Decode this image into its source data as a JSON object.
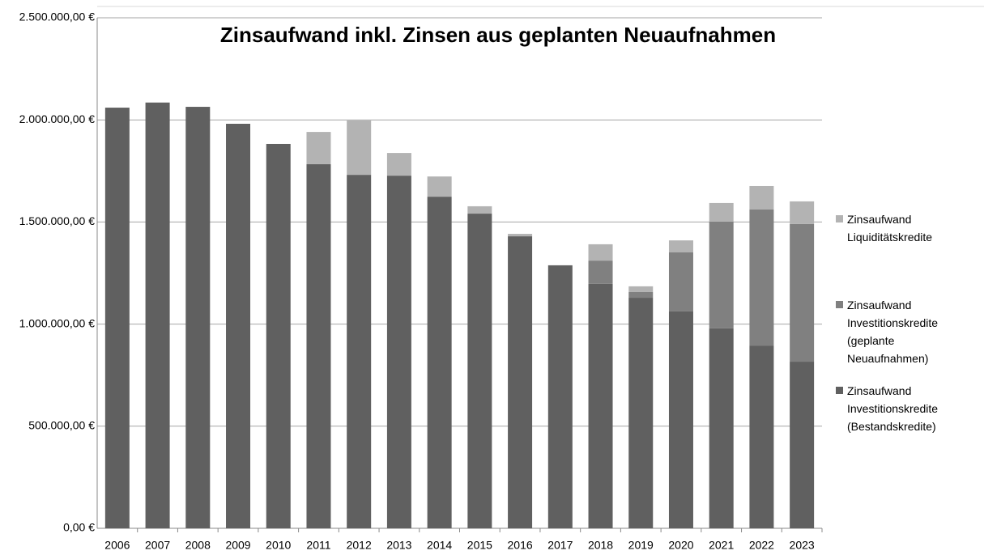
{
  "chart_data": {
    "type": "stacked_bar",
    "title": "Zinsaufwand inkl. Zinsen aus geplanten Neuaufnahmen",
    "categories": [
      "2006",
      "2007",
      "2008",
      "2009",
      "2010",
      "2011",
      "2012",
      "2013",
      "2014",
      "2015",
      "2016",
      "2017",
      "2018",
      "2019",
      "2020",
      "2021",
      "2022",
      "2023"
    ],
    "series": [
      {
        "name": "Zinsaufwand Investitionskredite (Bestandskredite)",
        "color": "#606060",
        "values": [
          2060000,
          2085000,
          2064000,
          1981000,
          1882000,
          1783000,
          1731000,
          1727000,
          1624000,
          1541000,
          1430000,
          1288000,
          1197000,
          1129000,
          1062000,
          979000,
          895000,
          816000
        ]
      },
      {
        "name": "Zinsaufwand Investitionskredite (geplante Neuaufnahmen)",
        "color": "#808080",
        "values": [
          0,
          0,
          0,
          0,
          0,
          0,
          0,
          0,
          0,
          0,
          0,
          0,
          114000,
          28000,
          289000,
          523000,
          666000,
          674000
        ]
      },
      {
        "name": "Zinsaufwand Liquiditätskredite",
        "color": "#b3b3b3",
        "values": [
          0,
          0,
          0,
          0,
          0,
          158000,
          266000,
          111000,
          99000,
          36000,
          12000,
          0,
          80000,
          28000,
          59000,
          91000,
          115000,
          111000
        ]
      }
    ],
    "ylim": [
      0,
      2500000
    ],
    "yticks": [
      {
        "value": 0,
        "label": "0,00 €"
      },
      {
        "value": 500000,
        "label": "500.000,00 €"
      },
      {
        "value": 1000000,
        "label": "1.000.000,00 €"
      },
      {
        "value": 1500000,
        "label": "1.500.000,00 €"
      },
      {
        "value": 2000000,
        "label": "2.000.000,00 €"
      },
      {
        "value": 2500000,
        "label": "2.500.000,00 €"
      }
    ],
    "grid": true
  }
}
